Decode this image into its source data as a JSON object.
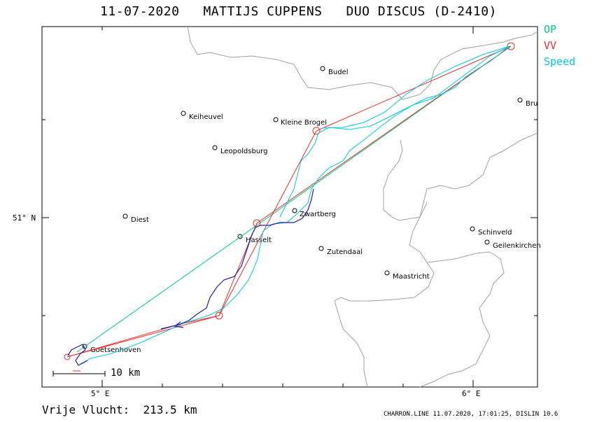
{
  "header": {
    "title": "11-07-2020   MATTIJS CUPPENS   DUO DISCUS (D-2410)"
  },
  "legend": {
    "items": [
      {
        "label": "OP",
        "color": "#00cc88"
      },
      {
        "label": "VV",
        "color": "#e8302a"
      },
      {
        "label": "Speed",
        "color": "#00c8e0"
      }
    ]
  },
  "axes": {
    "lat_label": "51° N",
    "lon_labels": [
      "5° E",
      "6° E"
    ]
  },
  "places": [
    {
      "name": "Budel"
    },
    {
      "name": "Keiheuvel"
    },
    {
      "name": "Kleine Brogel"
    },
    {
      "name": "Leopoldsburg"
    },
    {
      "name": "Diest"
    },
    {
      "name": "Zwartberg"
    },
    {
      "name": "Hasselt"
    },
    {
      "name": "Zutendaal"
    },
    {
      "name": "Schinveld"
    },
    {
      "name": "Geilenkirchen"
    },
    {
      "name": "Maastricht"
    },
    {
      "name": "Goetsenhoven"
    },
    {
      "name": "Bru"
    }
  ],
  "scale": {
    "label": "10 km"
  },
  "summary": {
    "distance": "Vrije Vlucht:  213.5 km"
  },
  "footer": {
    "text": "CHARRON.LINE 11.07.2020, 17:01:25, DISLIN 10.6"
  },
  "colors": {
    "border_line": "#a0a0a0",
    "task_line": "#e8302a",
    "op_line": "#00cc88",
    "speed_line": "#00c8e0",
    "track_climb": "#2a1aa0"
  }
}
